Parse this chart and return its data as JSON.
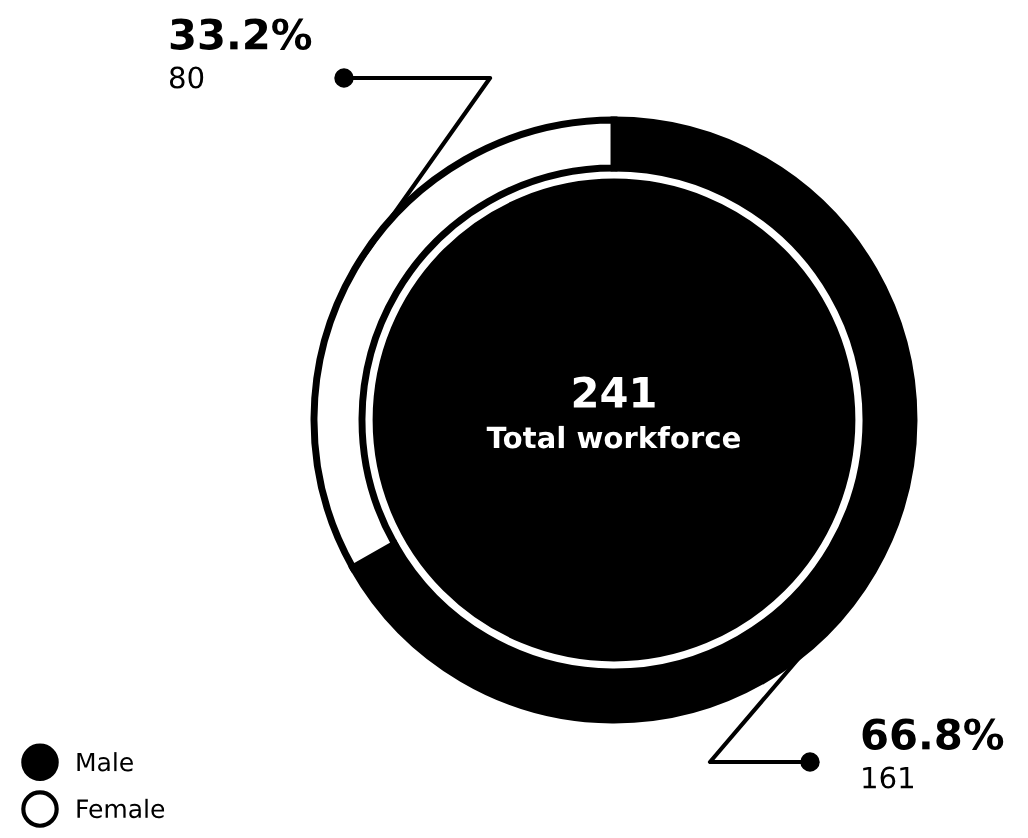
{
  "chart_data": {
    "type": "donut",
    "categories": [
      "Male",
      "Female"
    ],
    "values": [
      161,
      80
    ],
    "colors": [
      "#000000",
      "#ffffff"
    ],
    "data_labels": true,
    "annotations": [
      "241",
      "Total workforce",
      {
        "text": "66.8%",
        "x": "Male"
      },
      {
        "text": "33.2%",
        "x": "Female"
      }
    ],
    "legend": "bottom left"
  }
}
